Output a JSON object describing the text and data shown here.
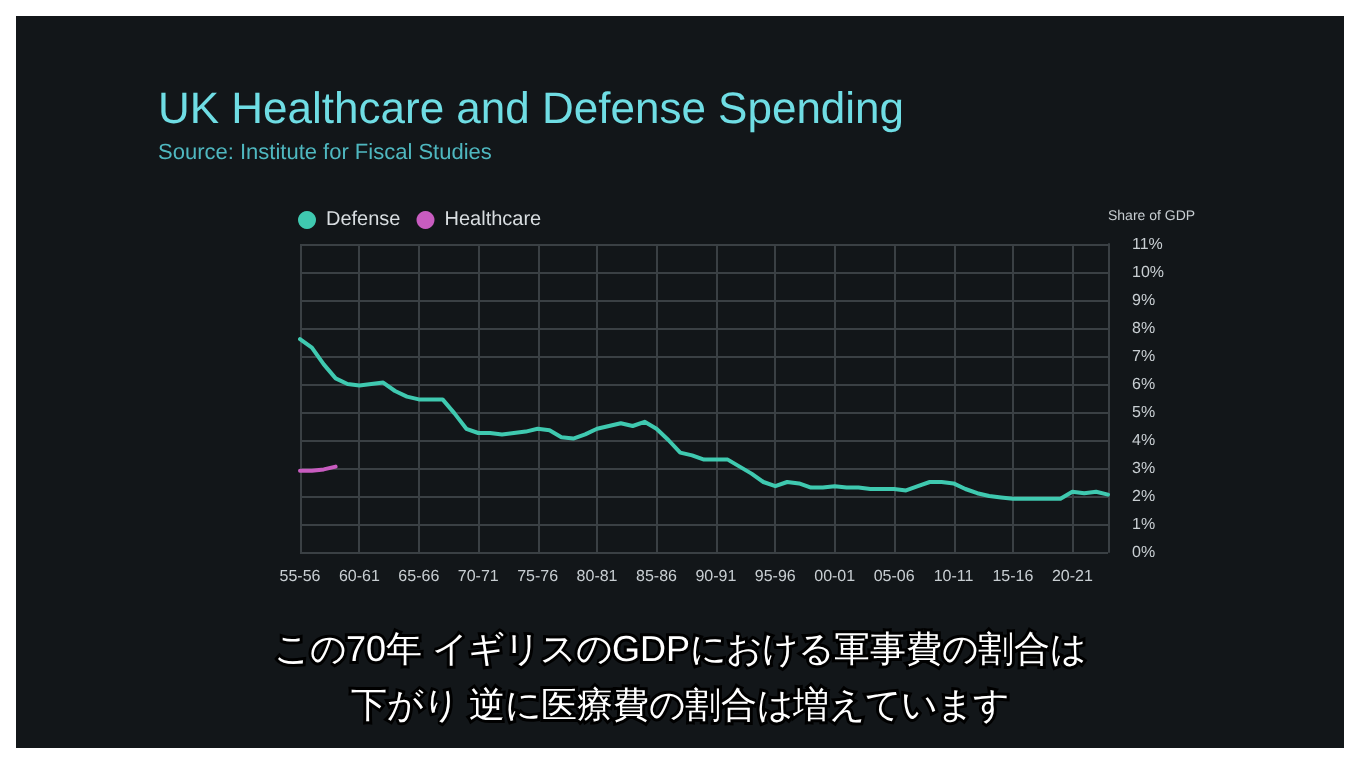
{
  "chart_data": {
    "type": "line",
    "title": "UK Healthcare and Defense Spending",
    "subtitle": "Source: Institute for Fiscal Studies",
    "ylabel": "Share of GDP",
    "categories": [
      "55-56",
      null,
      null,
      null,
      null,
      "60-61",
      null,
      null,
      null,
      null,
      "65-66",
      null,
      null,
      null,
      null,
      "70-71",
      null,
      null,
      null,
      null,
      "75-76",
      null,
      null,
      null,
      null,
      "80-81",
      null,
      null,
      null,
      null,
      "85-86",
      null,
      null,
      null,
      null,
      "90-91",
      null,
      null,
      null,
      null,
      "95-96",
      null,
      null,
      null,
      null,
      "00-01",
      null,
      null,
      null,
      null,
      "05-06",
      null,
      null,
      null,
      null,
      "10-11",
      null,
      null,
      null,
      null,
      "15-16",
      null,
      null,
      null,
      null,
      "20-21",
      null,
      null,
      null
    ],
    "series": [
      {
        "name": "Defense",
        "color": "#3fc9b0",
        "values": [
          7.6,
          7.3,
          6.7,
          6.2,
          6.0,
          5.95,
          6.0,
          6.05,
          5.75,
          5.55,
          5.45,
          5.45,
          5.45,
          4.95,
          4.4,
          4.25,
          4.25,
          4.2,
          4.25,
          4.3,
          4.4,
          4.35,
          4.1,
          4.05,
          4.2,
          4.4,
          4.5,
          4.6,
          4.5,
          4.65,
          4.4,
          4.0,
          3.55,
          3.45,
          3.3,
          3.3,
          3.3,
          3.05,
          2.8,
          2.5,
          2.35,
          2.5,
          2.45,
          2.3,
          2.3,
          2.35,
          2.3,
          2.3,
          2.25,
          2.25,
          2.25,
          2.2,
          2.35,
          2.5,
          2.5,
          2.45,
          2.25,
          2.1,
          2.0,
          1.95,
          1.9,
          1.9,
          1.9,
          1.9,
          1.9,
          2.15,
          2.1,
          2.15,
          2.05
        ]
      },
      {
        "name": "Healthcare",
        "color": "#c85cc0",
        "values": [
          2.9,
          2.9,
          2.95,
          3.05,
          null,
          null,
          null,
          null,
          null,
          null,
          null,
          null,
          null,
          null,
          null,
          null,
          null,
          null,
          null,
          null,
          null,
          null,
          null,
          null,
          null,
          null,
          null,
          null,
          null,
          null,
          null,
          null,
          null,
          null,
          null,
          null,
          null,
          null,
          null,
          null,
          null,
          null,
          null,
          null,
          null,
          null,
          null,
          null,
          null,
          null,
          null,
          null,
          null,
          null,
          null,
          null,
          null,
          null,
          null,
          null,
          null,
          null,
          null,
          null,
          null,
          null,
          null,
          null,
          null
        ]
      }
    ],
    "ylim": [
      0,
      11
    ],
    "yticks": [
      {
        "value": 0,
        "label": "0%"
      },
      {
        "value": 1,
        "label": "1%"
      },
      {
        "value": 2,
        "label": "2%"
      },
      {
        "value": 3,
        "label": "3%"
      },
      {
        "value": 4,
        "label": "4%"
      },
      {
        "value": 5,
        "label": "5%"
      },
      {
        "value": 6,
        "label": "6%"
      },
      {
        "value": 7,
        "label": "7%"
      },
      {
        "value": 8,
        "label": "8%"
      },
      {
        "value": 9,
        "label": "9%"
      },
      {
        "value": 10,
        "label": "10%"
      },
      {
        "value": 11,
        "label": "11%"
      }
    ],
    "grid": true,
    "legend": "top left",
    "marker": "none",
    "line_style": "solid",
    "annotations": [
      "この70年 イギリスのGDPにおける軍事費の割合は",
      "下がり 逆に医療費の割合は増えています"
    ]
  }
}
